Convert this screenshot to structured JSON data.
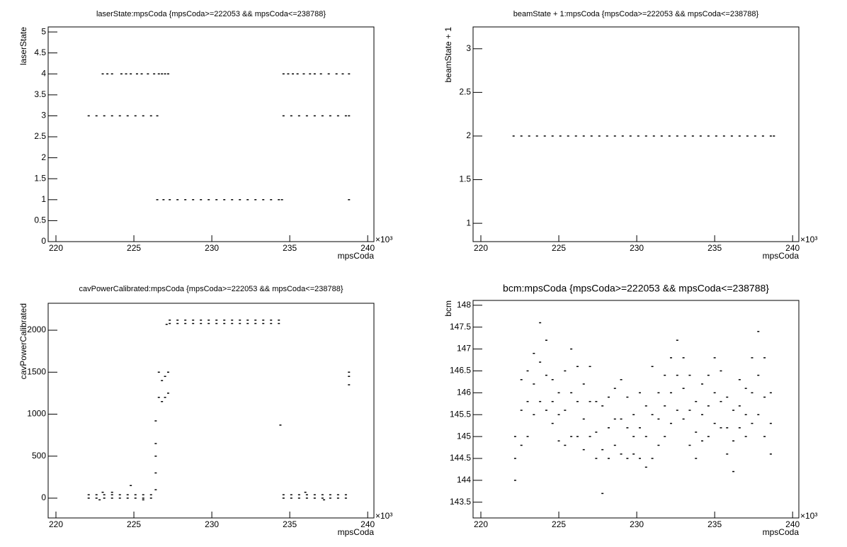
{
  "chart_data": [
    {
      "type": "scatter",
      "title": "laserState:mpsCoda {mpsCoda>=222053 && mpsCoda<=238788}",
      "xlabel": "mpsCoda",
      "ylabel": "laserState",
      "x_multiplier": "×10³",
      "color": "#000000",
      "xlim": [
        219.5,
        240.4
      ],
      "xticks": [
        220,
        225,
        230,
        235,
        240
      ],
      "ylim": [
        0,
        5.12
      ],
      "yticks": [
        0,
        0.5,
        1,
        1.5,
        2,
        2.5,
        3,
        3.5,
        4,
        4.5,
        5
      ],
      "x": [
        222.1,
        222.6,
        223.1,
        223.6,
        224.1,
        224.6,
        225.1,
        225.6,
        226.1,
        226.5,
        223.0,
        223.3,
        223.6,
        224.2,
        224.5,
        224.8,
        225.2,
        225.5,
        225.9,
        226.3,
        226.6,
        226.8,
        227.0,
        227.2,
        226.5,
        226.9,
        227.3,
        227.8,
        228.3,
        228.8,
        229.3,
        229.8,
        230.3,
        230.8,
        231.3,
        231.8,
        232.3,
        232.8,
        233.3,
        233.8,
        234.3,
        234.5,
        234.6,
        235.1,
        235.6,
        236.1,
        236.6,
        237.1,
        237.6,
        238.1,
        238.6,
        238.8,
        234.6,
        234.9,
        235.2,
        235.5,
        235.9,
        236.3,
        236.6,
        237.0,
        237.5,
        238.0,
        238.4,
        238.8,
        238.8
      ],
      "values": [
        3,
        3,
        3,
        3,
        3,
        3,
        3,
        3,
        3,
        3,
        4,
        4,
        4,
        4,
        4,
        4,
        4,
        4,
        4,
        4,
        4,
        4,
        4,
        4,
        1,
        1,
        1,
        1,
        1,
        1,
        1,
        1,
        1,
        1,
        1,
        1,
        1,
        1,
        1,
        1,
        1,
        1,
        3,
        3,
        3,
        3,
        3,
        3,
        3,
        3,
        3,
        3,
        4,
        4,
        4,
        4,
        4,
        4,
        4,
        4,
        4,
        4,
        4,
        4,
        1
      ]
    },
    {
      "type": "scatter",
      "title": "beamState + 1:mpsCoda {mpsCoda>=222053 && mpsCoda<=238788}",
      "xlabel": "mpsCoda",
      "ylabel": "beamState + 1",
      "x_multiplier": "×10³",
      "color": "#000000",
      "xlim": [
        219.5,
        240.4
      ],
      "xticks": [
        220,
        225,
        230,
        235,
        240
      ],
      "ylim": [
        0.79,
        3.25
      ],
      "yticks": [
        1,
        1.5,
        2,
        2.5,
        3
      ],
      "x": [
        222.1,
        222.6,
        223.1,
        223.6,
        224.1,
        224.6,
        225.1,
        225.6,
        226.1,
        226.6,
        227.1,
        227.6,
        228.1,
        228.6,
        229.1,
        229.6,
        230.1,
        230.6,
        231.1,
        231.6,
        232.1,
        232.6,
        233.1,
        233.6,
        234.1,
        234.6,
        235.1,
        235.6,
        236.1,
        236.6,
        237.1,
        237.6,
        238.1,
        238.6,
        238.8
      ],
      "values": [
        2,
        2,
        2,
        2,
        2,
        2,
        2,
        2,
        2,
        2,
        2,
        2,
        2,
        2,
        2,
        2,
        2,
        2,
        2,
        2,
        2,
        2,
        2,
        2,
        2,
        2,
        2,
        2,
        2,
        2,
        2,
        2,
        2,
        2,
        2
      ]
    },
    {
      "type": "scatter",
      "title": "cavPowerCalibrated:mpsCoda {mpsCoda>=222053 && mpsCoda<=238788}",
      "xlabel": "mpsCoda",
      "ylabel": "cavPowerCalibrated",
      "x_multiplier": "×10³",
      "color": "#000000",
      "xlim": [
        219.5,
        240.4
      ],
      "xticks": [
        220,
        225,
        230,
        235,
        240
      ],
      "ylim": [
        -236,
        2321
      ],
      "yticks": [
        0,
        500,
        1000,
        1500,
        2000
      ],
      "x": [
        222.1,
        222.6,
        223.1,
        223.6,
        224.1,
        224.6,
        225.1,
        225.6,
        226.1,
        222.1,
        222.6,
        223.1,
        223.6,
        224.1,
        224.6,
        225.1,
        225.6,
        226.1,
        234.6,
        235.1,
        235.6,
        236.1,
        236.6,
        237.1,
        237.6,
        238.1,
        238.6,
        234.6,
        235.1,
        235.6,
        236.1,
        236.6,
        237.1,
        237.6,
        238.1,
        238.6,
        222.8,
        223.0,
        223.6,
        224.8,
        225.6,
        236.0,
        237.2,
        226.4,
        226.4,
        226.4,
        226.4,
        226.4,
        226.6,
        226.6,
        226.8,
        226.8,
        227.0,
        227.0,
        227.2,
        227.2,
        227.3,
        227.8,
        228.3,
        228.8,
        229.3,
        229.8,
        230.3,
        230.8,
        231.3,
        231.8,
        232.3,
        232.8,
        233.3,
        233.8,
        234.3,
        227.3,
        227.8,
        228.3,
        228.8,
        229.3,
        229.8,
        230.3,
        230.8,
        231.3,
        231.8,
        232.3,
        232.8,
        233.3,
        233.8,
        234.3,
        227.1,
        234.4,
        238.8,
        238.8,
        238.8
      ],
      "values": [
        40,
        40,
        40,
        40,
        40,
        40,
        40,
        40,
        40,
        0,
        0,
        0,
        0,
        0,
        0,
        0,
        0,
        0,
        40,
        40,
        40,
        40,
        40,
        40,
        40,
        40,
        40,
        0,
        0,
        0,
        0,
        0,
        0,
        0,
        0,
        0,
        -20,
        70,
        70,
        150,
        -20,
        70,
        -20,
        100,
        300,
        500,
        650,
        920,
        1200,
        1500,
        1150,
        1400,
        1200,
        1450,
        1250,
        1500,
        2080,
        2080,
        2080,
        2080,
        2080,
        2080,
        2080,
        2080,
        2080,
        2080,
        2080,
        2080,
        2080,
        2080,
        2080,
        2120,
        2120,
        2120,
        2120,
        2120,
        2120,
        2120,
        2120,
        2120,
        2120,
        2120,
        2120,
        2120,
        2120,
        2120,
        2070,
        870,
        1350,
        1450,
        1500
      ]
    },
    {
      "type": "scatter",
      "title": "bcm:mpsCoda {mpsCoda>=222053 && mpsCoda<=238788}",
      "xlabel": "mpsCoda",
      "ylabel": "bcm",
      "x_multiplier": "×10³",
      "color": "#000000",
      "xlim": [
        219.5,
        240.4
      ],
      "xticks": [
        220,
        225,
        230,
        235,
        240
      ],
      "ylim": [
        143.14,
        148.11
      ],
      "yticks": [
        143.5,
        144,
        144.5,
        145,
        145.5,
        146,
        146.5,
        147,
        147.5,
        148
      ],
      "x": [
        222.2,
        222.2,
        222.2,
        222.6,
        222.6,
        222.6,
        223.0,
        223.0,
        223.0,
        223.4,
        223.4,
        223.4,
        223.8,
        223.8,
        223.8,
        224.2,
        224.2,
        224.2,
        224.6,
        224.6,
        224.6,
        225.0,
        225.0,
        225.0,
        225.4,
        225.4,
        225.4,
        225.8,
        225.8,
        225.8,
        226.2,
        226.2,
        226.2,
        226.6,
        226.6,
        226.6,
        227.0,
        227.0,
        227.0,
        227.4,
        227.4,
        227.4,
        227.8,
        227.8,
        227.8,
        228.2,
        228.2,
        228.2,
        228.6,
        228.6,
        228.6,
        229.0,
        229.0,
        229.0,
        229.4,
        229.4,
        229.4,
        229.8,
        229.8,
        229.8,
        230.2,
        230.2,
        230.2,
        230.6,
        230.6,
        230.6,
        231.0,
        231.0,
        231.0,
        231.4,
        231.4,
        231.4,
        231.8,
        231.8,
        231.8,
        232.2,
        232.2,
        232.2,
        232.6,
        232.6,
        232.6,
        233.0,
        233.0,
        233.0,
        233.4,
        233.4,
        233.4,
        233.8,
        233.8,
        233.8,
        234.2,
        234.2,
        234.2,
        234.6,
        234.6,
        234.6,
        235.0,
        235.0,
        235.0,
        235.4,
        235.4,
        235.4,
        235.8,
        235.8,
        235.8,
        236.2,
        236.2,
        236.2,
        236.6,
        236.6,
        236.6,
        237.0,
        237.0,
        237.0,
        237.4,
        237.4,
        237.4,
        237.8,
        237.8,
        237.8,
        238.2,
        238.2,
        238.2,
        238.6,
        238.6,
        238.6
      ],
      "values": [
        144.0,
        144.5,
        145.0,
        144.8,
        145.6,
        146.3,
        145.0,
        145.8,
        146.5,
        145.5,
        146.2,
        146.9,
        145.8,
        146.7,
        147.6,
        145.6,
        146.4,
        147.2,
        145.3,
        145.8,
        146.3,
        144.9,
        145.5,
        146.0,
        144.8,
        145.6,
        146.5,
        145.0,
        146.0,
        147.0,
        145.0,
        145.8,
        146.6,
        144.7,
        145.4,
        146.2,
        145.0,
        145.8,
        146.6,
        144.5,
        145.1,
        145.8,
        143.7,
        144.7,
        145.7,
        144.5,
        145.2,
        145.9,
        144.8,
        145.4,
        146.1,
        144.6,
        145.4,
        146.3,
        144.5,
        145.2,
        145.9,
        144.6,
        145.0,
        145.5,
        144.5,
        145.2,
        146.0,
        144.3,
        145.0,
        145.7,
        144.5,
        145.5,
        146.6,
        144.8,
        145.4,
        146.0,
        145.0,
        145.7,
        146.4,
        145.3,
        146.0,
        146.8,
        145.6,
        146.4,
        147.2,
        145.4,
        146.1,
        146.8,
        144.8,
        145.6,
        146.4,
        144.5,
        145.1,
        145.8,
        144.9,
        145.5,
        146.2,
        145.0,
        145.7,
        146.4,
        145.3,
        146.0,
        146.8,
        145.2,
        145.8,
        146.5,
        144.6,
        145.2,
        145.9,
        144.2,
        144.9,
        145.6,
        145.2,
        145.7,
        146.3,
        145.0,
        145.5,
        146.1,
        145.3,
        146.0,
        146.8,
        145.5,
        146.4,
        147.4,
        145.0,
        145.9,
        146.8,
        144.6,
        145.3,
        146.0
      ]
    }
  ]
}
